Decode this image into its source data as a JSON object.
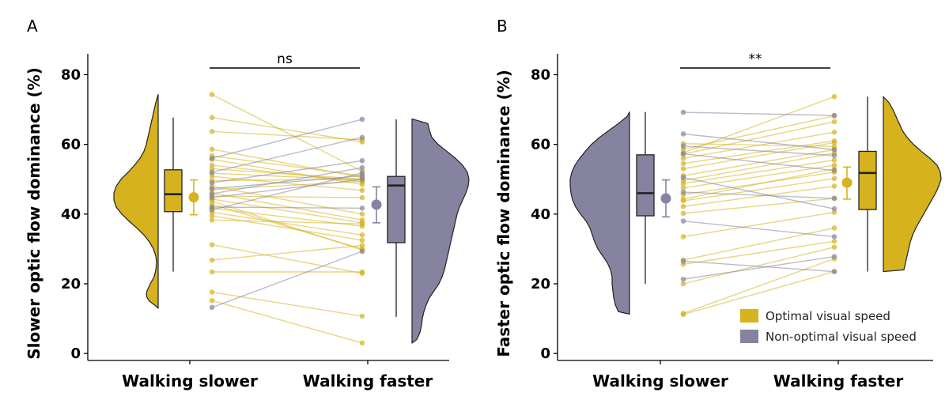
{
  "colors": {
    "optimal": "#d6b21e",
    "non_optimal": "#85839f",
    "axis": "#000000"
  },
  "chart_data": [
    {
      "type": "raincloud",
      "panel": "A",
      "ylabel": "Slower optic flow dominance (%)",
      "ylim": [
        -2,
        86
      ],
      "yticks": [
        0,
        20,
        40,
        60,
        80
      ],
      "categories": [
        "Walking slower",
        "Walking faster"
      ],
      "significance": "ns",
      "left_condition": "optimal",
      "right_condition": "non_optimal",
      "box_left": {
        "min": 23.5,
        "q1": 40.7,
        "median": 45.7,
        "q3": 52.7,
        "max": 67.7
      },
      "box_right": {
        "min": 10.5,
        "q1": 31.8,
        "median": 48.2,
        "q3": 50.8,
        "max": 67.2
      },
      "mean_left": {
        "mean": 44.8,
        "low": 39.8,
        "high": 49.8
      },
      "mean_right": {
        "mean": 42.7,
        "low": 37.5,
        "high": 47.8
      },
      "density_left": {
        "y": [
          13,
          14,
          15,
          16,
          17,
          18,
          20,
          22,
          24,
          26,
          28,
          30,
          32,
          34,
          36,
          38,
          40,
          42,
          44,
          46,
          48,
          50,
          52,
          54,
          56,
          58,
          60,
          62,
          64,
          66,
          68,
          70,
          72,
          74.3
        ],
        "w": [
          0,
          5,
          11,
          14,
          15,
          14,
          10,
          5,
          3,
          2,
          3,
          6,
          11,
          18,
          27,
          37,
          46,
          53,
          56,
          56,
          53,
          47,
          38,
          30,
          23,
          18,
          15,
          13,
          11,
          9,
          7,
          5,
          3,
          0
        ]
      },
      "density_right": {
        "y": [
          3,
          4,
          6,
          8,
          10,
          12,
          14,
          16,
          18,
          20,
          22,
          24,
          26,
          28,
          30,
          32,
          34,
          36,
          38,
          40,
          42,
          44,
          46,
          48,
          50,
          52,
          54,
          56,
          58,
          60,
          62,
          64,
          66,
          67.3
        ],
        "w": [
          0,
          6,
          10,
          12,
          13,
          15,
          18,
          22,
          28,
          34,
          38,
          41,
          43,
          45,
          47,
          49,
          51,
          53,
          55,
          57,
          60,
          64,
          68,
          71,
          72,
          70,
          64,
          55,
          44,
          33,
          25,
          22,
          20,
          0
        ]
      },
      "pairs": [
        [
          74.3,
          52.3
        ],
        [
          67.7,
          60.7
        ],
        [
          63.7,
          61.3
        ],
        [
          58.6,
          50.5
        ],
        [
          56.7,
          51.0
        ],
        [
          55.7,
          48.5
        ],
        [
          54.0,
          49.3
        ],
        [
          53.0,
          50.0
        ],
        [
          51.7,
          49.8
        ],
        [
          50.8,
          46.8
        ],
        [
          49.6,
          50.0
        ],
        [
          48.0,
          40.0
        ],
        [
          47.0,
          49.4
        ],
        [
          46.0,
          38.3
        ],
        [
          45.2,
          44.7
        ],
        [
          44.3,
          37.5
        ],
        [
          43.7,
          29.7
        ],
        [
          42.8,
          30.0
        ],
        [
          41.7,
          36.5
        ],
        [
          40.5,
          34.0
        ],
        [
          39.5,
          32.5
        ],
        [
          38.3,
          37.2
        ],
        [
          31.2,
          23.0
        ],
        [
          26.8,
          31.0
        ],
        [
          23.4,
          23.4
        ],
        [
          17.6,
          10.7
        ],
        [
          15.2,
          3.0
        ],
        [
          56.0,
          67.2
        ],
        [
          52.0,
          62.0
        ],
        [
          49.0,
          55.3
        ],
        [
          47.3,
          51.0
        ],
        [
          45.8,
          53.3
        ],
        [
          44.7,
          50.0
        ],
        [
          42.0,
          41.7
        ],
        [
          41.2,
          51.8
        ],
        [
          13.2,
          29.3
        ]
      ],
      "pair_colors": [
        "o",
        "o",
        "o",
        "o",
        "o",
        "o",
        "o",
        "o",
        "o",
        "o",
        "o",
        "o",
        "o",
        "o",
        "o",
        "o",
        "o",
        "o",
        "o",
        "o",
        "o",
        "o",
        "o",
        "o",
        "o",
        "o",
        "o",
        "n",
        "n",
        "n",
        "n",
        "n",
        "n",
        "n",
        "n",
        "n"
      ]
    },
    {
      "type": "raincloud",
      "panel": "B",
      "ylabel": "Faster optic flow dominance (%)",
      "ylim": [
        -2,
        86
      ],
      "yticks": [
        0,
        20,
        40,
        60,
        80
      ],
      "categories": [
        "Walking slower",
        "Walking faster"
      ],
      "significance": "**",
      "left_condition": "non_optimal",
      "right_condition": "optimal",
      "box_left": {
        "min": 20.0,
        "q1": 39.5,
        "median": 46.0,
        "q3": 57.0,
        "max": 69.3
      },
      "box_right": {
        "min": 23.5,
        "q1": 41.3,
        "median": 51.8,
        "q3": 58.0,
        "max": 73.7
      },
      "mean_left": {
        "mean": 44.5,
        "low": 39.2,
        "high": 49.8
      },
      "mean_right": {
        "mean": 49.0,
        "low": 44.3,
        "high": 53.5
      },
      "density_left": {
        "y": [
          11.3,
          12,
          14,
          16,
          18,
          20,
          22,
          24,
          26,
          28,
          30,
          32,
          34,
          36,
          38,
          40,
          42,
          44,
          46,
          48,
          50,
          52,
          54,
          56,
          58,
          60,
          62,
          64,
          66,
          68,
          69.3
        ],
        "w": [
          0,
          14,
          18,
          20,
          21,
          22,
          22,
          24,
          28,
          34,
          40,
          44,
          47,
          50,
          55,
          62,
          68,
          72,
          74,
          75,
          75,
          73,
          69,
          63,
          56,
          48,
          38,
          26,
          14,
          3,
          0
        ]
      },
      "density_right": {
        "y": [
          23.5,
          24,
          26,
          28,
          30,
          32,
          34,
          36,
          38,
          40,
          42,
          44,
          46,
          48,
          50,
          52,
          54,
          56,
          58,
          60,
          62,
          64,
          66,
          68,
          70,
          72,
          73.7
        ],
        "w": [
          0,
          26,
          28,
          30,
          32,
          34,
          37,
          41,
          46,
          51,
          56,
          61,
          66,
          70,
          73,
          72,
          68,
          59,
          48,
          38,
          30,
          24,
          20,
          16,
          12,
          7,
          0
        ]
      },
      "pairs": [
        [
          11.2,
          23.5
        ],
        [
          11.5,
          27.2
        ],
        [
          20.0,
          30.5
        ],
        [
          25.6,
          32.2
        ],
        [
          26.8,
          36.0
        ],
        [
          33.5,
          40.5
        ],
        [
          40.2,
          44.5
        ],
        [
          42.2,
          48.0
        ],
        [
          43.8,
          50.2
        ],
        [
          44.3,
          53.0
        ],
        [
          45.6,
          52.0
        ],
        [
          47.5,
          54.0
        ],
        [
          48.8,
          55.5
        ],
        [
          49.6,
          57.5
        ],
        [
          51.0,
          58.5
        ],
        [
          53.0,
          60.5
        ],
        [
          54.5,
          61.0
        ],
        [
          56.0,
          63.5
        ],
        [
          57.2,
          66.5
        ],
        [
          57.6,
          73.7
        ],
        [
          58.6,
          68.2
        ],
        [
          60.2,
          59.4
        ],
        [
          69.2,
          68.3
        ],
        [
          63.0,
          58.5
        ],
        [
          59.5,
          56.8
        ],
        [
          57.3,
          52.5
        ],
        [
          50.5,
          41.5
        ],
        [
          46.3,
          44.5
        ],
        [
          38.0,
          33.5
        ],
        [
          26.5,
          23.5
        ],
        [
          21.3,
          27.8
        ]
      ],
      "pair_colors": [
        "o",
        "o",
        "o",
        "o",
        "o",
        "o",
        "o",
        "o",
        "o",
        "o",
        "o",
        "o",
        "o",
        "o",
        "o",
        "o",
        "o",
        "o",
        "o",
        "o",
        "o",
        "o",
        "n",
        "n",
        "n",
        "n",
        "n",
        "n",
        "n",
        "n",
        "n"
      ]
    }
  ],
  "legend": [
    {
      "label": "Optimal visual speed",
      "color_key": "optimal"
    },
    {
      "label": "Non-optimal visual speed",
      "color_key": "non_optimal"
    }
  ]
}
